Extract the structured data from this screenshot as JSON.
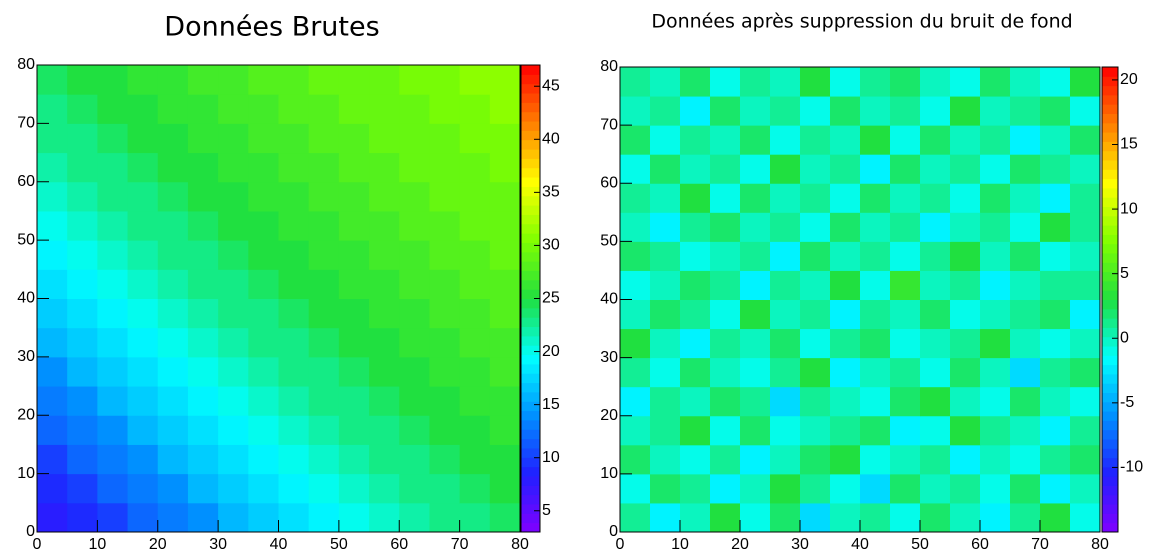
{
  "chart_data": [
    {
      "type": "heatmap",
      "title": "Données Brutes",
      "xbins": [
        0,
        5,
        10,
        15,
        20,
        25,
        30,
        35,
        40,
        45,
        50,
        55,
        60,
        65,
        70,
        75,
        80
      ],
      "ybins": [
        0,
        5,
        10,
        15,
        20,
        25,
        30,
        35,
        40,
        45,
        50,
        55,
        60,
        65,
        70,
        75,
        80
      ],
      "xlim": [
        0,
        80
      ],
      "ylim": [
        0,
        80
      ],
      "xticks": [
        0,
        10,
        20,
        30,
        40,
        50,
        60,
        70,
        80
      ],
      "yticks": [
        0,
        10,
        20,
        30,
        40,
        50,
        60,
        70,
        80
      ],
      "zlim": [
        3,
        47
      ],
      "zticks": [
        5,
        10,
        15,
        20,
        25,
        30,
        35,
        40,
        45
      ],
      "palette": [
        "#8000ff",
        "#2020ff",
        "#0090ff",
        "#00ffff",
        "#20e040",
        "#80ff00",
        "#ffff00",
        "#ff8000",
        "#ff0000"
      ],
      "values": [
        [
          8,
          9,
          10,
          12,
          13,
          14,
          16,
          17,
          18,
          19,
          20,
          21,
          22,
          23,
          23,
          24
        ],
        [
          9,
          10,
          12,
          13,
          14,
          16,
          17,
          18,
          19,
          20,
          21,
          22,
          23,
          23,
          24,
          25
        ],
        [
          10,
          12,
          13,
          14,
          16,
          17,
          18,
          19,
          20,
          21,
          22,
          23,
          23,
          24,
          25,
          25
        ],
        [
          12,
          13,
          14,
          16,
          17,
          18,
          19,
          20,
          21,
          22,
          23,
          23,
          24,
          25,
          25,
          26
        ],
        [
          13,
          14,
          16,
          17,
          18,
          19,
          20,
          21,
          22,
          23,
          23,
          24,
          25,
          25,
          26,
          26
        ],
        [
          14,
          16,
          17,
          18,
          19,
          20,
          21,
          22,
          23,
          23,
          24,
          25,
          25,
          26,
          26,
          27
        ],
        [
          16,
          17,
          18,
          19,
          20,
          21,
          22,
          23,
          23,
          24,
          25,
          25,
          26,
          26,
          27,
          27
        ],
        [
          17,
          18,
          19,
          20,
          21,
          22,
          23,
          23,
          24,
          25,
          25,
          26,
          26,
          27,
          27,
          28
        ],
        [
          18,
          19,
          20,
          21,
          22,
          23,
          23,
          24,
          25,
          25,
          26,
          26,
          27,
          27,
          28,
          28
        ],
        [
          19,
          20,
          21,
          22,
          23,
          23,
          24,
          25,
          25,
          26,
          26,
          27,
          27,
          28,
          28,
          29
        ],
        [
          20,
          21,
          22,
          23,
          23,
          24,
          25,
          25,
          26,
          26,
          27,
          27,
          28,
          28,
          29,
          29
        ],
        [
          21,
          22,
          23,
          23,
          24,
          25,
          25,
          26,
          26,
          27,
          27,
          28,
          28,
          29,
          29,
          29
        ],
        [
          22,
          23,
          23,
          24,
          25,
          25,
          26,
          26,
          27,
          27,
          28,
          28,
          29,
          29,
          29,
          30
        ],
        [
          23,
          23,
          24,
          25,
          25,
          26,
          26,
          27,
          27,
          28,
          28,
          29,
          29,
          29,
          30,
          30
        ],
        [
          23,
          24,
          25,
          25,
          26,
          26,
          27,
          27,
          28,
          28,
          29,
          29,
          29,
          30,
          30,
          31
        ],
        [
          24,
          25,
          25,
          26,
          26,
          27,
          27,
          28,
          28,
          29,
          29,
          29,
          30,
          30,
          31,
          31
        ]
      ]
    },
    {
      "type": "heatmap",
      "title": "Données après suppression du bruit de fond",
      "xbins": [
        0,
        5,
        10,
        15,
        20,
        25,
        30,
        35,
        40,
        45,
        50,
        55,
        60,
        65,
        70,
        75,
        80
      ],
      "ybins": [
        0,
        5,
        10,
        15,
        20,
        25,
        30,
        35,
        40,
        45,
        50,
        55,
        60,
        65,
        70,
        75,
        80
      ],
      "xlim": [
        0,
        80
      ],
      "ylim": [
        0,
        80
      ],
      "xticks": [
        0,
        10,
        20,
        30,
        40,
        50,
        60,
        70,
        80
      ],
      "yticks": [
        0,
        10,
        20,
        30,
        40,
        50,
        60,
        70,
        80
      ],
      "zlim": [
        -15,
        21
      ],
      "zticks": [
        -10,
        -5,
        0,
        5,
        10,
        15,
        20
      ],
      "palette": [
        "#8000ff",
        "#2020ff",
        "#0090ff",
        "#00ffff",
        "#20e040",
        "#80ff00",
        "#ffff00",
        "#ff8000",
        "#ff0000"
      ],
      "values": [
        [
          1,
          -2,
          0,
          3,
          -1,
          2,
          -3,
          0,
          1,
          -1,
          2,
          0,
          -2,
          1,
          3,
          -1
        ],
        [
          -1,
          2,
          1,
          -2,
          0,
          3,
          1,
          -1,
          -3,
          2,
          0,
          1,
          -1,
          2,
          -2,
          0
        ],
        [
          2,
          0,
          -1,
          1,
          -2,
          0,
          2,
          3,
          -1,
          0,
          1,
          -2,
          0,
          -1,
          1,
          2
        ],
        [
          0,
          1,
          3,
          -1,
          2,
          -1,
          0,
          1,
          2,
          -2,
          -1,
          3,
          1,
          0,
          -2,
          1
        ],
        [
          -2,
          1,
          0,
          2,
          1,
          -3,
          1,
          0,
          -1,
          2,
          3,
          0,
          -1,
          2,
          0,
          -1
        ],
        [
          1,
          -1,
          2,
          0,
          -1,
          1,
          3,
          -2,
          0,
          1,
          -1,
          2,
          0,
          -3,
          1,
          2
        ],
        [
          3,
          0,
          -2,
          1,
          0,
          2,
          -1,
          1,
          2,
          -1,
          0,
          1,
          3,
          0,
          -1,
          0
        ],
        [
          0,
          2,
          1,
          -1,
          3,
          0,
          1,
          -2,
          1,
          0,
          2,
          -1,
          0,
          1,
          2,
          -2
        ],
        [
          -1,
          0,
          2,
          1,
          -2,
          1,
          0,
          3,
          -1,
          4,
          0,
          1,
          -2,
          0,
          1,
          1
        ],
        [
          2,
          1,
          -1,
          0,
          1,
          -2,
          2,
          0,
          1,
          -1,
          1,
          3,
          0,
          2,
          -1,
          0
        ],
        [
          0,
          -2,
          1,
          2,
          0,
          1,
          -1,
          2,
          0,
          1,
          -2,
          0,
          1,
          -1,
          3,
          1
        ],
        [
          1,
          0,
          3,
          -1,
          2,
          0,
          1,
          -1,
          2,
          0,
          1,
          -1,
          2,
          0,
          -2,
          1
        ],
        [
          -1,
          2,
          0,
          1,
          -1,
          3,
          0,
          1,
          -2,
          2,
          0,
          1,
          -1,
          2,
          1,
          0
        ],
        [
          2,
          -1,
          1,
          0,
          2,
          -1,
          1,
          0,
          3,
          -1,
          2,
          0,
          1,
          -2,
          0,
          2
        ],
        [
          0,
          1,
          -2,
          2,
          0,
          1,
          -1,
          2,
          0,
          1,
          -1,
          3,
          0,
          1,
          2,
          -1
        ],
        [
          1,
          0,
          2,
          -1,
          1,
          0,
          3,
          -1,
          1,
          2,
          0,
          -1,
          2,
          0,
          -1,
          3
        ]
      ]
    }
  ]
}
